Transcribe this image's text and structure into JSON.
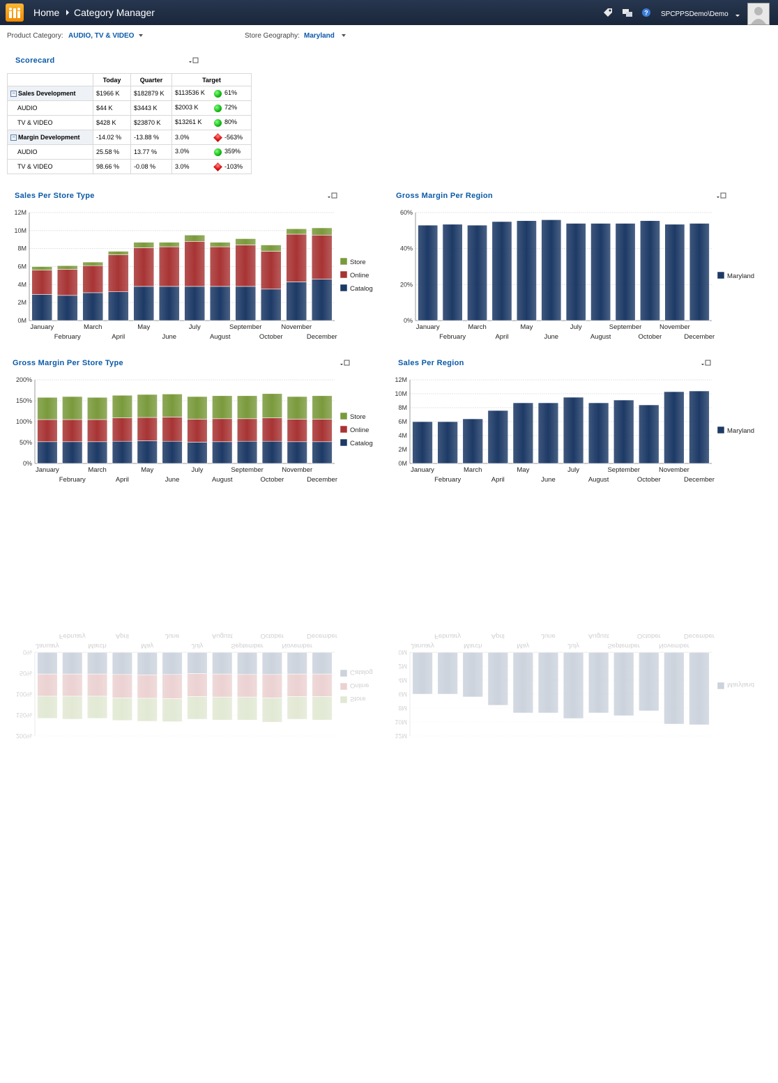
{
  "header": {
    "home": "Home",
    "page": "Category Manager",
    "user": "SPCPPSDemo\\Demo",
    "icons": [
      "tag-icon",
      "share-icon",
      "help-icon"
    ]
  },
  "filters": {
    "product_label": "Product Category:",
    "product_value": "AUDIO, TV & VIDEO",
    "geo_label": "Store Geography:",
    "geo_value": "Maryland"
  },
  "scorecard": {
    "title": "Scorecard",
    "columns": [
      "Today",
      "Quarter",
      "Target"
    ],
    "rows": [
      {
        "label": "Sales Development",
        "group": true,
        "today": "$1966 K",
        "quarter": "$182879 K",
        "target": "$113536 K",
        "status": "green",
        "pct": "61%"
      },
      {
        "label": "AUDIO",
        "group": false,
        "today": "$44 K",
        "quarter": "$3443 K",
        "target": "$2003 K",
        "status": "green",
        "pct": "72%"
      },
      {
        "label": "TV & VIDEO",
        "group": false,
        "today": "$428 K",
        "quarter": "$23870 K",
        "target": "$13261 K",
        "status": "green",
        "pct": "80%"
      },
      {
        "label": "Margin Development",
        "group": true,
        "today": "-14.02 %",
        "quarter": "-13.88 %",
        "target": "3.0%",
        "status": "red",
        "pct": "-563%"
      },
      {
        "label": "AUDIO",
        "group": false,
        "today": "25.58 %",
        "quarter": "13.77 %",
        "target": "3.0%",
        "status": "green",
        "pct": "359%"
      },
      {
        "label": "TV & VIDEO",
        "group": false,
        "today": "98.66 %",
        "quarter": "-0.08 %",
        "target": "3.0%",
        "status": "red",
        "pct": "-103%"
      }
    ]
  },
  "colors": {
    "store": "#7a9a3c",
    "online": "#a83434",
    "catalog": "#1d3a66",
    "maryland": "#1d3a66"
  },
  "chart_data": [
    {
      "id": "sales-store-type",
      "title": "Sales Per Store Type",
      "type": "bar",
      "stacked": true,
      "categories": [
        "January",
        "February",
        "March",
        "April",
        "May",
        "June",
        "July",
        "August",
        "September",
        "October",
        "November",
        "December"
      ],
      "series": [
        {
          "name": "Catalog",
          "values": [
            2.9,
            2.8,
            3.1,
            3.2,
            3.8,
            3.8,
            3.8,
            3.8,
            3.8,
            3.5,
            4.3,
            4.6
          ]
        },
        {
          "name": "Online",
          "values": [
            2.7,
            2.9,
            3.0,
            4.1,
            4.3,
            4.4,
            5.0,
            4.4,
            4.6,
            4.2,
            5.3,
            4.9
          ]
        },
        {
          "name": "Store",
          "values": [
            0.4,
            0.4,
            0.4,
            0.4,
            0.6,
            0.5,
            0.7,
            0.5,
            0.7,
            0.7,
            0.6,
            0.8
          ]
        }
      ],
      "yticks": [
        "0M",
        "2M",
        "4M",
        "6M",
        "8M",
        "10M",
        "12M"
      ],
      "ylim": [
        0,
        12
      ]
    },
    {
      "id": "gm-region",
      "title": "Gross Margin Per Region",
      "type": "bar",
      "categories": [
        "January",
        "February",
        "March",
        "April",
        "May",
        "June",
        "July",
        "August",
        "September",
        "October",
        "November",
        "December"
      ],
      "series": [
        {
          "name": "Maryland",
          "values": [
            53,
            53.5,
            53,
            55,
            55.5,
            56,
            54,
            54,
            54,
            55.5,
            53.5,
            54
          ]
        }
      ],
      "yticks": [
        "0%",
        "20%",
        "40%",
        "60%"
      ],
      "ylim": [
        0,
        60
      ]
    },
    {
      "id": "gm-store-type",
      "title": "Gross Margin Per Store Type",
      "type": "bar",
      "stacked": true,
      "categories": [
        "January",
        "February",
        "March",
        "April",
        "May",
        "June",
        "July",
        "August",
        "September",
        "October",
        "November",
        "December"
      ],
      "series": [
        {
          "name": "Catalog",
          "values": [
            52,
            52,
            52,
            53,
            54,
            53,
            51,
            52,
            53,
            53,
            52,
            52
          ]
        },
        {
          "name": "Online",
          "values": [
            53,
            53,
            53,
            56,
            56,
            58,
            55,
            55,
            54,
            56,
            54,
            54
          ]
        },
        {
          "name": "Store",
          "values": [
            53,
            55,
            53,
            54,
            55,
            55,
            54,
            55,
            55,
            58,
            54,
            56
          ]
        }
      ],
      "yticks": [
        "0%",
        "50%",
        "100%",
        "150%",
        "200%"
      ],
      "ylim": [
        0,
        200
      ]
    },
    {
      "id": "sales-region",
      "title": "Sales Per Region",
      "type": "bar",
      "categories": [
        "January",
        "February",
        "March",
        "April",
        "May",
        "June",
        "July",
        "August",
        "September",
        "October",
        "November",
        "December"
      ],
      "series": [
        {
          "name": "Maryland",
          "values": [
            6.0,
            6.0,
            6.4,
            7.6,
            8.7,
            8.7,
            9.5,
            8.7,
            9.1,
            8.4,
            10.3,
            10.4
          ]
        }
      ],
      "yticks": [
        "0M",
        "2M",
        "4M",
        "6M",
        "8M",
        "10M",
        "12M"
      ],
      "ylim": [
        0,
        12
      ]
    }
  ]
}
